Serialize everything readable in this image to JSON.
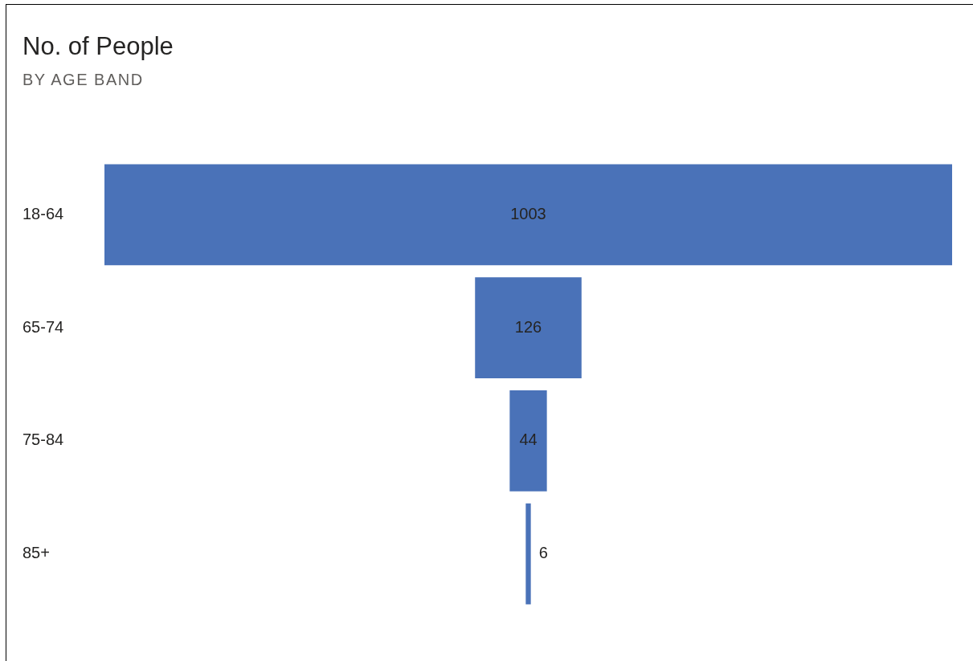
{
  "chart_data": {
    "type": "other",
    "title": "No. of People",
    "subtitle": "BY AGE BAND",
    "categories": [
      "18-64",
      "65-74",
      "75-84",
      "85+"
    ],
    "values": [
      1003,
      126,
      44,
      6
    ],
    "color": "#4a72b8",
    "data_labels": true
  }
}
